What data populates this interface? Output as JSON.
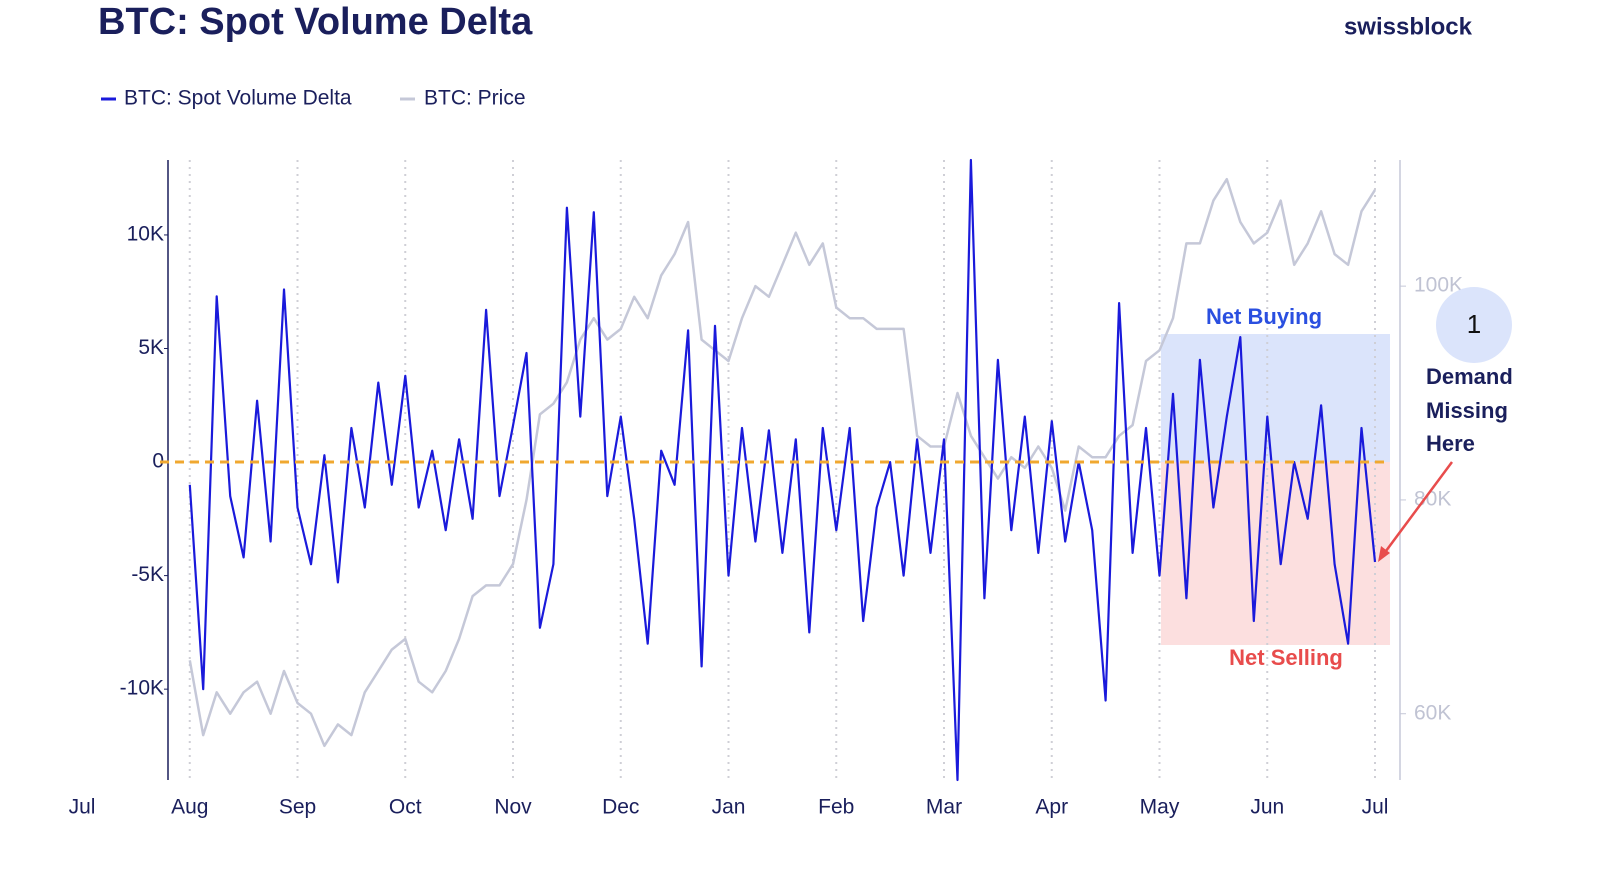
{
  "chart_data": {
    "type": "line",
    "title": "BTC: Spot Volume Delta",
    "brand": "swissblock",
    "categories": [
      "Jul",
      null,
      null,
      null,
      null,
      null,
      null,
      null,
      "Aug",
      null,
      null,
      null,
      null,
      null,
      null,
      null,
      "Sep",
      null,
      null,
      null,
      null,
      null,
      null,
      null,
      "Oct",
      null,
      null,
      null,
      null,
      null,
      null,
      null,
      "Nov",
      null,
      null,
      null,
      null,
      null,
      null,
      null,
      "Dec",
      null,
      null,
      null,
      null,
      null,
      null,
      null,
      "Jan",
      null,
      null,
      null,
      null,
      null,
      null,
      null,
      "Feb",
      null,
      null,
      null,
      null,
      null,
      null,
      null,
      "Mar",
      null,
      null,
      null,
      null,
      null,
      null,
      null,
      "Apr",
      null,
      null,
      null,
      null,
      null,
      null,
      null,
      "May",
      null,
      null,
      null,
      null,
      null,
      null,
      null,
      "Jun",
      null,
      null,
      null,
      null,
      null,
      null,
      null,
      "Jul"
    ],
    "series": [
      {
        "name": "BTC: Spot Volume Delta",
        "color": "#1a1adb",
        "axis": "y",
        "values": [
          null,
          null,
          null,
          null,
          null,
          null,
          null,
          null,
          -1000,
          -10000,
          7300,
          -1500,
          -4200,
          2700,
          -3500,
          7600,
          -2000,
          -4500,
          300,
          -5300,
          1500,
          -2000,
          3500,
          -1000,
          3800,
          -2000,
          500,
          -3000,
          1000,
          -2500,
          6700,
          -1500,
          1600,
          4800,
          -7300,
          -4500,
          11200,
          2000,
          11000,
          -1500,
          2000,
          -2500,
          -8000,
          500,
          -1000,
          5800,
          -9000,
          6000,
          -5000,
          1500,
          -3500,
          1400,
          -4000,
          1000,
          -7500,
          1500,
          -3000,
          1500,
          -7000,
          -2000,
          0,
          -5000,
          1000,
          -4000,
          1000,
          -14000,
          13300,
          -6000,
          4500,
          -3000,
          2000,
          -4000,
          1800,
          -3500,
          0,
          -3000,
          -10500,
          7000,
          -4000,
          1500,
          -5000,
          3000,
          -6000,
          4500,
          -2000,
          2000,
          5500,
          -7000,
          2000,
          -4500,
          0,
          -2500,
          2500,
          -4500,
          -8000,
          1500,
          -4400
        ]
      },
      {
        "name": "BTC: Price",
        "color": "#c5c8d8",
        "axis": "y2",
        "values": [
          null,
          null,
          null,
          null,
          null,
          null,
          null,
          null,
          65000,
          58000,
          62000,
          60000,
          62000,
          63000,
          60000,
          64000,
          61000,
          60000,
          57000,
          59000,
          58000,
          62000,
          64000,
          66000,
          67000,
          63000,
          62000,
          64000,
          67000,
          71000,
          72000,
          72000,
          74000,
          80000,
          88000,
          89000,
          91000,
          95000,
          97000,
          95000,
          96000,
          99000,
          97000,
          101000,
          103000,
          106000,
          95000,
          94000,
          93000,
          97000,
          100000,
          99000,
          102000,
          105000,
          102000,
          104000,
          98000,
          97000,
          97000,
          96000,
          96000,
          96000,
          86000,
          85000,
          85000,
          90000,
          86000,
          84000,
          82000,
          84000,
          83000,
          85000,
          83000,
          79000,
          85000,
          84000,
          84000,
          86000,
          87000,
          93000,
          94000,
          97000,
          104000,
          104000,
          108000,
          110000,
          106000,
          104000,
          105000,
          108000,
          102000,
          104000,
          107000,
          103000,
          102000,
          107000,
          109000
        ]
      }
    ],
    "ylim": [
      -14000,
      13300
    ],
    "yticks": [
      {
        "value": -10000,
        "label": "-10K"
      },
      {
        "value": -5000,
        "label": "-5K"
      },
      0,
      {
        "value": 5000,
        "label": "5K"
      },
      {
        "value": 10000,
        "label": "10K"
      }
    ],
    "y2lim": [
      53800,
      111800
    ],
    "y2ticks": [
      {
        "value": 60000,
        "label": "60K"
      },
      {
        "value": 80000,
        "label": "80K"
      },
      {
        "value": 100000,
        "label": "100K"
      }
    ],
    "zero_line_color": "#f0a830",
    "grid": true,
    "legend": "top-left",
    "annotations": {
      "net_buying": "Net Buying",
      "net_selling": "Net Selling",
      "marker": "1",
      "note": [
        "Demand",
        "Missing",
        "Here"
      ]
    }
  }
}
